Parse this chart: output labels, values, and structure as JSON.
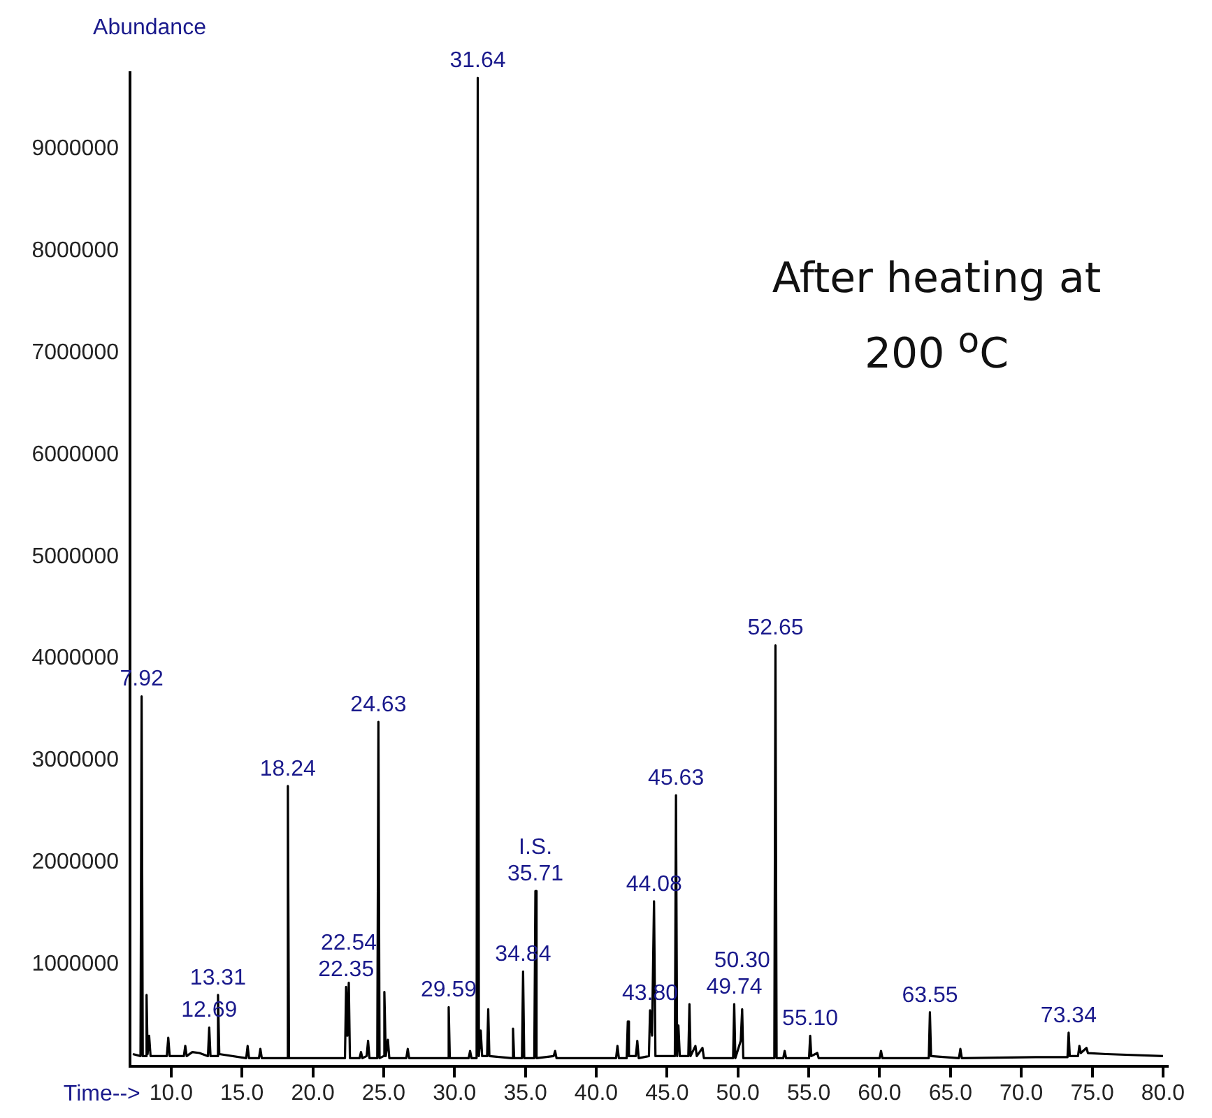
{
  "chart_data": {
    "type": "line",
    "xlabel": "Time-->",
    "ylabel": "Abundance",
    "xlim": [
      7.1,
      80.3
    ],
    "ylim": [
      0,
      9750000
    ],
    "xticks": [
      {
        "value": 10,
        "label": "10.0"
      },
      {
        "value": 15,
        "label": "15.0"
      },
      {
        "value": 20,
        "label": "20.0"
      },
      {
        "value": 25,
        "label": "25.0"
      },
      {
        "value": 30,
        "label": "30.0"
      },
      {
        "value": 35,
        "label": "35.0"
      },
      {
        "value": 40,
        "label": "40.0"
      },
      {
        "value": 45,
        "label": "45.0"
      },
      {
        "value": 50,
        "label": "50.0"
      },
      {
        "value": 55,
        "label": "55.0"
      },
      {
        "value": 60,
        "label": "60.0"
      },
      {
        "value": 65,
        "label": "65.0"
      },
      {
        "value": 70,
        "label": "70.0"
      },
      {
        "value": 75,
        "label": "75.0"
      },
      {
        "value": 80,
        "label": "80.0"
      }
    ],
    "yticks": [
      1000000,
      2000000,
      3000000,
      4000000,
      5000000,
      6000000,
      7000000,
      8000000,
      9000000
    ],
    "grid": false,
    "legend": false,
    "marker": "none",
    "line_style": "solid",
    "series": [
      {
        "color": "#000000",
        "x": [
          7.3,
          7.84,
          7.92,
          8.0,
          8.2,
          8.27,
          8.34,
          8.45,
          8.55,
          9.7,
          9.8,
          9.9,
          10.9,
          11.0,
          11.1,
          11.5,
          12.0,
          12.6,
          12.69,
          12.78,
          13.23,
          13.31,
          13.4,
          15.3,
          15.4,
          15.5,
          16.2,
          16.3,
          16.4,
          18.16,
          18.24,
          18.32,
          22.27,
          22.35,
          22.44,
          22.54,
          22.62,
          23.3,
          23.4,
          23.5,
          23.8,
          23.9,
          24.0,
          24.55,
          24.63,
          24.71,
          25.0,
          25.05,
          25.15,
          25.3,
          25.4,
          26.6,
          26.7,
          26.8,
          29.51,
          29.59,
          29.67,
          31.0,
          31.1,
          31.2,
          31.56,
          31.64,
          31.72,
          31.85,
          31.95,
          32.3,
          32.38,
          32.46,
          34.05,
          34.13,
          34.21,
          34.76,
          34.84,
          34.92,
          35.63,
          35.71,
          35.79,
          37.0,
          37.1,
          37.2,
          41.4,
          41.5,
          41.6,
          42.15,
          42.23,
          42.31,
          42.8,
          42.9,
          43.0,
          43.72,
          43.8,
          43.94,
          44.08,
          44.18,
          45.55,
          45.63,
          45.71,
          45.8,
          45.9,
          46.5,
          46.58,
          46.66,
          47.0,
          47.1,
          47.5,
          47.6,
          49.66,
          49.74,
          49.82,
          50.2,
          50.3,
          50.38,
          52.57,
          52.65,
          52.73,
          53.2,
          53.3,
          53.4,
          55.02,
          55.1,
          55.18,
          55.6,
          55.7,
          60.0,
          60.1,
          60.2,
          63.47,
          63.55,
          63.63,
          65.6,
          65.7,
          65.8,
          71.0,
          73.26,
          73.34,
          73.42,
          74.0,
          74.1,
          74.2,
          74.6,
          74.7,
          76.0,
          80.0
        ],
        "values": [
          120000,
          100000,
          3630000,
          100000,
          100000,
          700000,
          120000,
          300000,
          100000,
          100000,
          280000,
          100000,
          100000,
          200000,
          100000,
          140000,
          130000,
          100000,
          380000,
          100000,
          100000,
          700000,
          120000,
          80000,
          200000,
          80000,
          80000,
          170000,
          80000,
          80000,
          2750000,
          80000,
          80000,
          780000,
          300000,
          820000,
          80000,
          80000,
          140000,
          80000,
          100000,
          250000,
          80000,
          80000,
          3380000,
          80000,
          100000,
          730000,
          100000,
          260000,
          80000,
          80000,
          170000,
          80000,
          80000,
          580000,
          80000,
          80000,
          150000,
          80000,
          80000,
          9700000,
          100000,
          350000,
          100000,
          100000,
          560000,
          100000,
          80000,
          370000,
          80000,
          80000,
          930000,
          80000,
          80000,
          1720000,
          80000,
          100000,
          150000,
          80000,
          80000,
          200000,
          80000,
          80000,
          440000,
          100000,
          100000,
          250000,
          80000,
          100000,
          550000,
          300000,
          1620000,
          100000,
          100000,
          2660000,
          100000,
          400000,
          100000,
          100000,
          610000,
          100000,
          200000,
          100000,
          180000,
          80000,
          80000,
          610000,
          80000,
          250000,
          560000,
          80000,
          80000,
          4130000,
          80000,
          80000,
          150000,
          80000,
          80000,
          300000,
          100000,
          130000,
          80000,
          80000,
          150000,
          80000,
          80000,
          530000,
          100000,
          80000,
          170000,
          80000,
          90000,
          90000,
          330000,
          100000,
          100000,
          200000,
          130000,
          180000,
          130000,
          120000,
          100000
        ]
      }
    ],
    "annotations": [
      {
        "text": "7.92",
        "x": 7.92,
        "y": 3630000
      },
      {
        "text": "12.69",
        "x": 12.69,
        "y": 380000
      },
      {
        "text": "13.31",
        "x": 13.31,
        "y": 700000
      },
      {
        "text": "18.24",
        "x": 18.24,
        "y": 2750000
      },
      {
        "text": "22.35",
        "x": 22.35,
        "y": 780000
      },
      {
        "text": "22.54",
        "x": 22.54,
        "y": 820000
      },
      {
        "text": "24.63",
        "x": 24.63,
        "y": 3380000
      },
      {
        "text": "29.59",
        "x": 29.59,
        "y": 580000
      },
      {
        "text": "31.64",
        "x": 31.64,
        "y": 9700000
      },
      {
        "text": "34.84",
        "x": 34.84,
        "y": 930000
      },
      {
        "text": "35.71",
        "x": 35.71,
        "y": 1720000
      },
      {
        "text": "I.S.",
        "x": 35.71,
        "y": 1720000
      },
      {
        "text": "43.80",
        "x": 43.8,
        "y": 550000
      },
      {
        "text": "44.08",
        "x": 44.08,
        "y": 1620000
      },
      {
        "text": "45.63",
        "x": 45.63,
        "y": 2660000
      },
      {
        "text": "49.74",
        "x": 49.74,
        "y": 610000
      },
      {
        "text": "50.30",
        "x": 50.3,
        "y": 560000
      },
      {
        "text": "52.65",
        "x": 52.65,
        "y": 4130000
      },
      {
        "text": "55.10",
        "x": 55.1,
        "y": 300000
      },
      {
        "text": "63.55",
        "x": 63.55,
        "y": 530000
      },
      {
        "text": "73.34",
        "x": 73.34,
        "y": 330000
      },
      "After heating at 200 $^{o}$C"
    ]
  }
}
